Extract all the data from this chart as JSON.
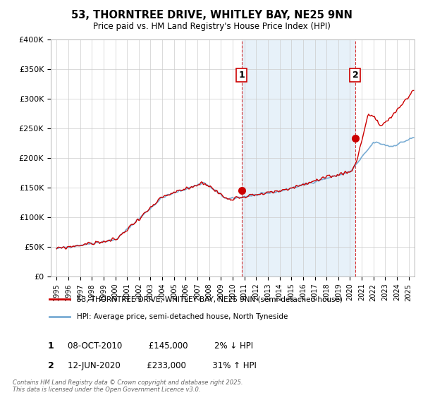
{
  "title": "53, THORNTREE DRIVE, WHITLEY BAY, NE25 9NN",
  "subtitle": "Price paid vs. HM Land Registry's House Price Index (HPI)",
  "ylabel_ticks": [
    "£0",
    "£50K",
    "£100K",
    "£150K",
    "£200K",
    "£250K",
    "£300K",
    "£350K",
    "£400K"
  ],
  "ylim": [
    0,
    400000
  ],
  "xlim_start": 1994.5,
  "xlim_end": 2025.5,
  "legend_line1": "53, THORNTREE DRIVE, WHITLEY BAY, NE25 9NN (semi-detached house)",
  "legend_line2": "HPI: Average price, semi-detached house, North Tyneside",
  "point1_x": 2010.77,
  "point1_y": 145000,
  "point1_date": "08-OCT-2010",
  "point1_price": "£145,000",
  "point1_pct": "2% ↓ HPI",
  "point2_x": 2020.45,
  "point2_y": 233000,
  "point2_date": "12-JUN-2020",
  "point2_price": "£233,000",
  "point2_pct": "31% ↑ HPI",
  "line_color_red": "#cc0000",
  "line_color_blue": "#7aadd4",
  "vline_color": "#cc0000",
  "shade_color": "#d8e8f5",
  "footnote": "Contains HM Land Registry data © Crown copyright and database right 2025.\nThis data is licensed under the Open Government Licence v3.0.",
  "background_color": "#ffffff",
  "grid_color": "#cccccc"
}
